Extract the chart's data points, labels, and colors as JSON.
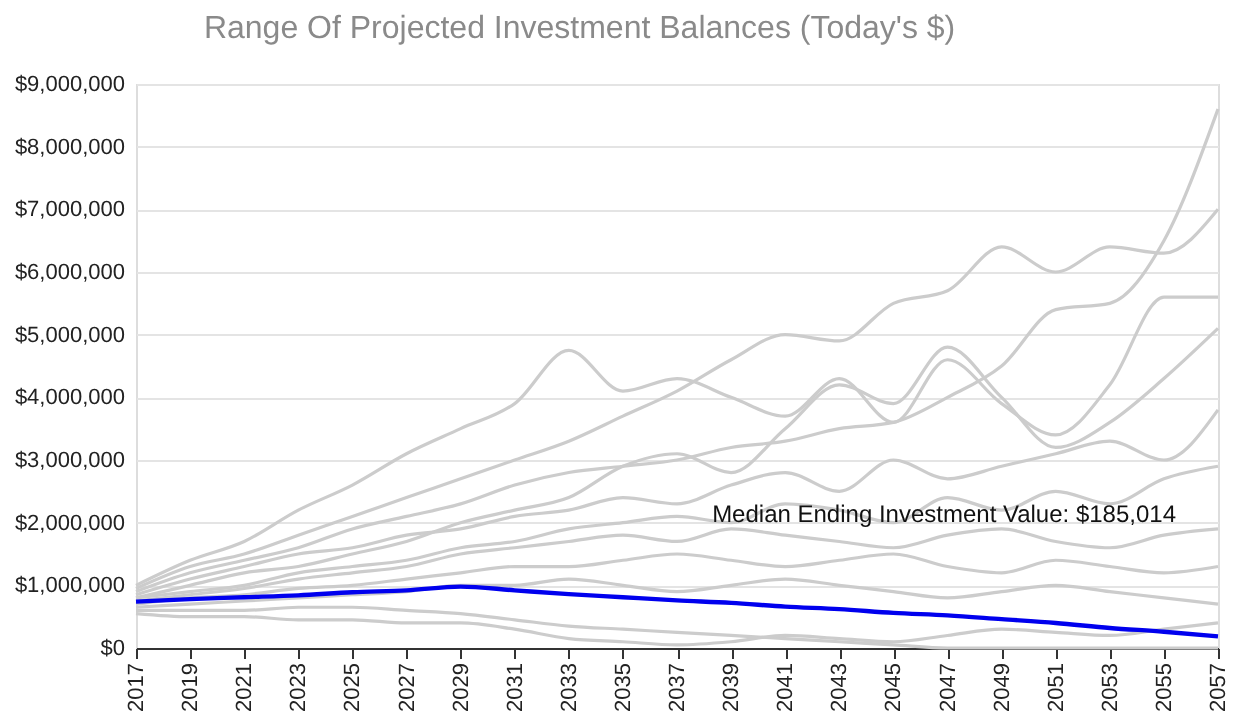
{
  "chart_data": {
    "type": "line",
    "title": "Range Of Projected Investment Balances (Today's $)",
    "x": [
      2017,
      2019,
      2021,
      2023,
      2025,
      2027,
      2029,
      2031,
      2033,
      2035,
      2037,
      2039,
      2041,
      2043,
      2045,
      2047,
      2049,
      2051,
      2053,
      2055,
      2057
    ],
    "series": [
      {
        "color": "#cccccc",
        "values": [
          900000,
          1200000,
          1400000,
          1600000,
          1900000,
          2100000,
          2300000,
          2600000,
          2800000,
          2900000,
          3000000,
          3200000,
          3300000,
          3500000,
          3600000,
          4000000,
          4500000,
          5400000,
          5500000,
          6500000,
          8600000
        ]
      },
      {
        "color": "#cccccc",
        "values": [
          950000,
          1300000,
          1500000,
          1800000,
          2100000,
          2400000,
          2700000,
          3000000,
          3300000,
          3700000,
          4100000,
          4600000,
          5000000,
          4900000,
          5500000,
          5700000,
          6400000,
          6000000,
          6400000,
          6300000,
          7000000
        ]
      },
      {
        "color": "#cccccc",
        "values": [
          1000000,
          1400000,
          1700000,
          2200000,
          2600000,
          3100000,
          3500000,
          3900000,
          4750000,
          4100000,
          4300000,
          4000000,
          3700000,
          4300000,
          3600000,
          4600000,
          3900000,
          3400000,
          4200000,
          5600000,
          5600000
        ]
      },
      {
        "color": "#cccccc",
        "values": [
          800000,
          1000000,
          1200000,
          1300000,
          1500000,
          1700000,
          2000000,
          2200000,
          2400000,
          2900000,
          3100000,
          2800000,
          3500000,
          4200000,
          3900000,
          4800000,
          4000000,
          3200000,
          3600000,
          4300000,
          5100000
        ]
      },
      {
        "color": "#cccccc",
        "values": [
          850000,
          1100000,
          1300000,
          1500000,
          1600000,
          1800000,
          1900000,
          2100000,
          2200000,
          2400000,
          2300000,
          2600000,
          2800000,
          2500000,
          3000000,
          2700000,
          2900000,
          3100000,
          3300000,
          3000000,
          3800000
        ]
      },
      {
        "color": "#cccccc",
        "values": [
          800000,
          900000,
          1000000,
          1200000,
          1300000,
          1400000,
          1600000,
          1700000,
          1900000,
          2000000,
          2100000,
          2000000,
          2300000,
          2200000,
          2000000,
          2400000,
          2200000,
          2500000,
          2300000,
          2700000,
          2900000
        ]
      },
      {
        "color": "#cccccc",
        "values": [
          750000,
          850000,
          950000,
          1100000,
          1200000,
          1300000,
          1500000,
          1600000,
          1700000,
          1800000,
          1700000,
          1900000,
          1800000,
          1700000,
          1600000,
          1800000,
          1900000,
          1700000,
          1600000,
          1800000,
          1900000
        ]
      },
      {
        "color": "#cccccc",
        "values": [
          700000,
          800000,
          850000,
          950000,
          1000000,
          1100000,
          1200000,
          1300000,
          1300000,
          1400000,
          1500000,
          1400000,
          1300000,
          1400000,
          1500000,
          1300000,
          1200000,
          1400000,
          1300000,
          1200000,
          1300000
        ]
      },
      {
        "color": "#cccccc",
        "values": [
          650000,
          700000,
          750000,
          800000,
          850000,
          900000,
          1000000,
          1000000,
          1100000,
          1000000,
          900000,
          1000000,
          1100000,
          1000000,
          900000,
          800000,
          900000,
          1000000,
          900000,
          800000,
          700000
        ]
      },
      {
        "color": "#cccccc",
        "values": [
          600000,
          600000,
          600000,
          650000,
          650000,
          600000,
          550000,
          450000,
          350000,
          300000,
          250000,
          200000,
          150000,
          100000,
          50000,
          0,
          0,
          0,
          0,
          0,
          0
        ]
      },
      {
        "color": "#cccccc",
        "values": [
          550000,
          500000,
          500000,
          450000,
          450000,
          400000,
          400000,
          300000,
          150000,
          100000,
          50000,
          100000,
          200000,
          150000,
          100000,
          200000,
          300000,
          250000,
          200000,
          300000,
          400000
        ]
      },
      {
        "color": "#0000ee",
        "values": [
          740000,
          780000,
          810000,
          840000,
          890000,
          920000,
          980000,
          920000,
          860000,
          810000,
          760000,
          720000,
          660000,
          620000,
          560000,
          520000,
          460000,
          400000,
          320000,
          260000,
          185014
        ]
      }
    ],
    "xlim": [
      2017,
      2057
    ],
    "xticks": [
      2017,
      2019,
      2021,
      2023,
      2025,
      2027,
      2029,
      2031,
      2033,
      2035,
      2037,
      2039,
      2041,
      2043,
      2045,
      2047,
      2049,
      2051,
      2053,
      2055,
      2057
    ],
    "ylim": [
      0,
      9000000
    ],
    "yticks": [
      {
        "value": 0,
        "label": "$0"
      },
      {
        "value": 1000000,
        "label": "$1,000,000"
      },
      {
        "value": 2000000,
        "label": "$2,000,000"
      },
      {
        "value": 3000000,
        "label": "$3,000,000"
      },
      {
        "value": 4000000,
        "label": "$4,000,000"
      },
      {
        "value": 5000000,
        "label": "$5,000,000"
      },
      {
        "value": 6000000,
        "label": "$6,000,000"
      },
      {
        "value": 7000000,
        "label": "$7,000,000"
      },
      {
        "value": 8000000,
        "label": "$8,000,000"
      },
      {
        "value": 9000000,
        "label": "$9,000,000"
      }
    ],
    "grid": "y",
    "marker": "none",
    "line_style": "solid",
    "annotations": [
      "Median Ending Investment Value: $185,014"
    ]
  }
}
